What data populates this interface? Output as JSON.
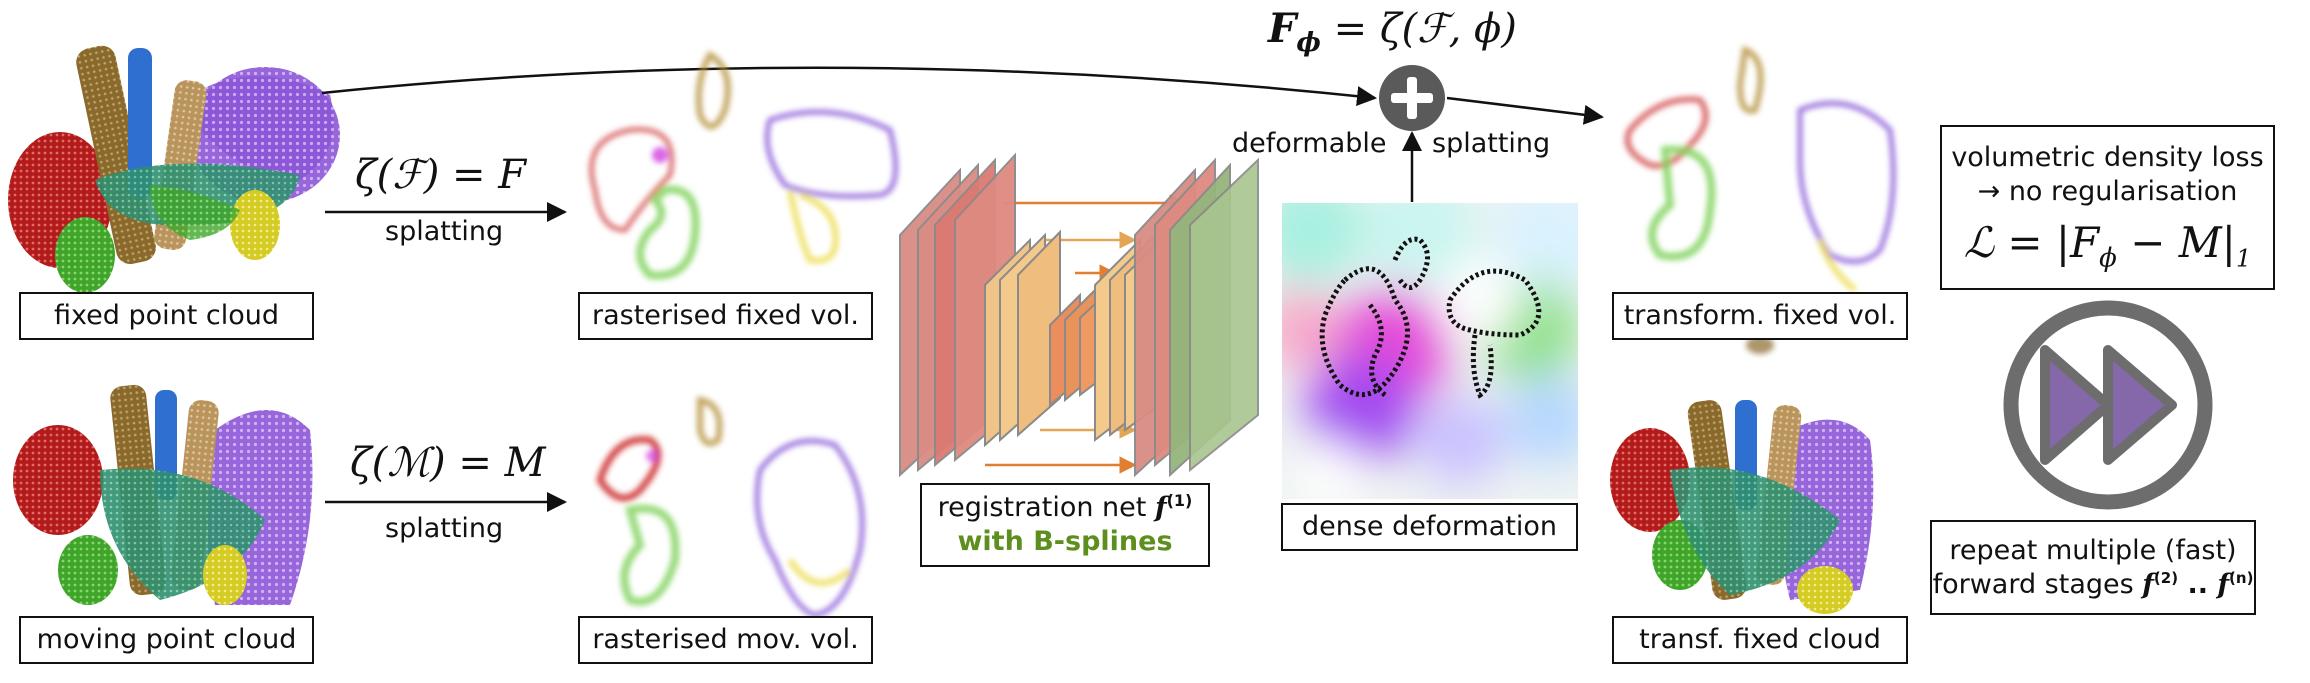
{
  "labels": {
    "fixed_cloud": "fixed point cloud",
    "moving_cloud": "moving point cloud",
    "rast_fixed": "rasterised fixed vol.",
    "rast_moving": "rasterised mov. vol.",
    "reg_net": "registration net",
    "reg_net_sup": "(1)",
    "bsplines": "with B-splines",
    "dense_def": "dense deformation",
    "transform_fixed_vol": "transform. fixed vol.",
    "transf_fixed_cloud": "transf. fixed cloud"
  },
  "ops": {
    "splat_F": "ζ(ℱ) = F",
    "splat_M": "ζ(ℳ) = M",
    "splatting": "splatting",
    "deformable": "deformable",
    "splatting_right": "splatting",
    "F_phi": "F",
    "F_phi_sub": "ϕ",
    "F_phi_rhs": " = ζ(ℱ, ϕ)"
  },
  "loss": {
    "line1": "volumetric density loss",
    "line2": "→ no regularisation",
    "formula": "ℒ = |F",
    "formula_sub": "ϕ",
    "formula_rest": " − M|",
    "formula_norm": "1"
  },
  "repeat": {
    "line1": "repeat multiple (fast)",
    "line2": "forward  stages",
    "f": "f",
    "sup2": "(2)",
    "dots": " .. ",
    "supn": "(n)"
  },
  "icons": {
    "plus": "plus-circle-icon",
    "forward": "fast-forward-icon"
  },
  "colors": {
    "green_text": "#5e8e1e",
    "icon_gray": "#6d6d6d",
    "icon_purple": "#8468aa"
  }
}
